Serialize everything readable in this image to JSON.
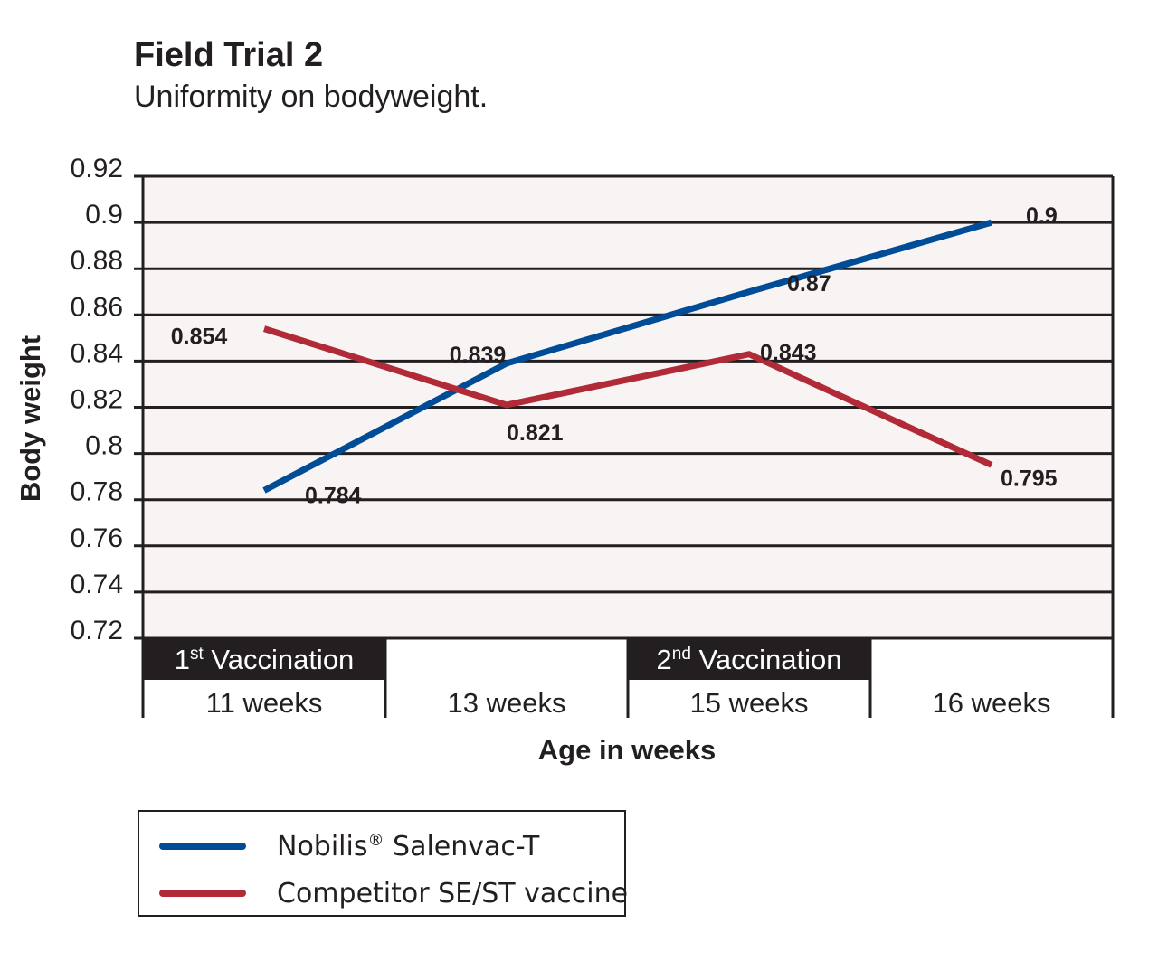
{
  "chart_data": {
    "type": "line",
    "title": "Field Trial 2",
    "subtitle": "Uniformity on bodyweight.",
    "xlabel": "Age in weeks",
    "ylabel": "Body weight",
    "categories": [
      "11 weeks",
      "13 weeks",
      "15 weeks",
      "16 weeks"
    ],
    "ylim": [
      0.72,
      0.92
    ],
    "yticks": [
      "0.92",
      "0.9",
      "0.88",
      "0.86",
      "0.84",
      "0.82",
      "0.8",
      "0.78",
      "0.76",
      "0.74",
      "0.72"
    ],
    "grid": true,
    "series": [
      {
        "name": "Nobilis® Salenvac-T",
        "name_base": "Nobilis",
        "name_mark": "®",
        "name_rest": " Salenvac-T",
        "color": "#004c97",
        "values": [
          0.784,
          0.839,
          0.87,
          0.9
        ],
        "labels": [
          "0.784",
          "0.839",
          "0.87",
          "0.9"
        ]
      },
      {
        "name": "Competitor SE/ST vaccine",
        "color": "#b02a37",
        "values": [
          0.854,
          0.821,
          0.843,
          0.795
        ],
        "labels": [
          "0.854",
          "0.821",
          "0.843",
          "0.795"
        ]
      }
    ],
    "annotations": [
      {
        "category": "11 weeks",
        "base": "1",
        "sup": "st",
        "rest": " Vaccination"
      },
      {
        "category": "15 weeks",
        "base": "2",
        "sup": "nd",
        "rest": " Vaccination"
      }
    ],
    "legend_position": "bottom-left"
  }
}
